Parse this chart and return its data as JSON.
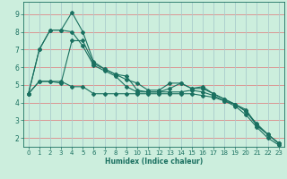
{
  "xlabel": "Humidex (Indice chaleur)",
  "background_color": "#cceedd",
  "grid_color_h": "#dd8888",
  "grid_color_v": "#aacccc",
  "line_color": "#1a7060",
  "xlim": [
    -0.5,
    23.5
  ],
  "ylim": [
    1.5,
    9.7
  ],
  "xticks": [
    0,
    1,
    2,
    3,
    4,
    5,
    6,
    7,
    8,
    9,
    10,
    11,
    12,
    13,
    14,
    15,
    16,
    17,
    18,
    19,
    20,
    21,
    22,
    23
  ],
  "yticks": [
    2,
    3,
    4,
    5,
    6,
    7,
    8,
    9
  ],
  "series": [
    [
      4.5,
      5.2,
      5.2,
      5.2,
      4.9,
      4.9,
      4.5,
      4.5,
      4.5,
      4.5,
      4.5,
      4.5,
      4.5,
      4.5,
      4.5,
      4.5,
      4.4,
      4.3,
      4.1,
      3.9,
      3.6,
      2.7,
      2.2,
      1.7
    ],
    [
      4.5,
      7.0,
      8.1,
      8.1,
      9.1,
      8.0,
      6.3,
      5.9,
      5.6,
      5.3,
      5.1,
      4.7,
      4.7,
      5.1,
      5.1,
      4.8,
      4.8,
      4.5,
      4.2,
      3.9,
      3.5,
      2.7,
      2.2,
      1.7
    ],
    [
      4.5,
      7.0,
      8.1,
      8.1,
      8.0,
      7.2,
      6.1,
      5.8,
      5.5,
      4.9,
      4.6,
      4.6,
      4.6,
      4.8,
      5.1,
      4.8,
      4.9,
      4.5,
      4.2,
      3.9,
      3.5,
      2.8,
      2.2,
      1.7
    ],
    [
      4.5,
      5.2,
      5.2,
      5.1,
      7.5,
      7.5,
      6.2,
      5.9,
      5.6,
      5.5,
      4.7,
      4.6,
      4.6,
      4.6,
      4.6,
      4.7,
      4.6,
      4.4,
      4.1,
      3.8,
      3.3,
      2.6,
      2.0,
      1.6
    ]
  ]
}
